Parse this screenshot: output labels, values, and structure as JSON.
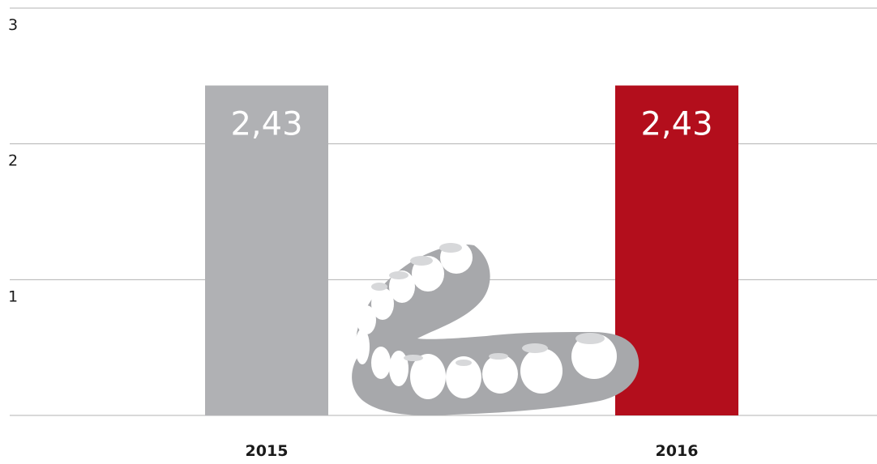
{
  "chart_data": {
    "type": "bar",
    "categories": [
      "2015",
      "2016"
    ],
    "values": [
      2.43,
      2.43
    ],
    "value_labels": [
      "2,43",
      "2,43"
    ],
    "bar_colors": [
      "#b0b1b4",
      "#b30e1c"
    ],
    "ylim": [
      0,
      3
    ],
    "yticks": [
      1,
      2,
      3
    ],
    "ytick_labels": [
      "1",
      "2",
      "3"
    ],
    "grid": true,
    "title": "",
    "xlabel": "",
    "ylabel": ""
  },
  "decoration": {
    "icon": "denture-icon",
    "color": "#a7a8ab"
  }
}
